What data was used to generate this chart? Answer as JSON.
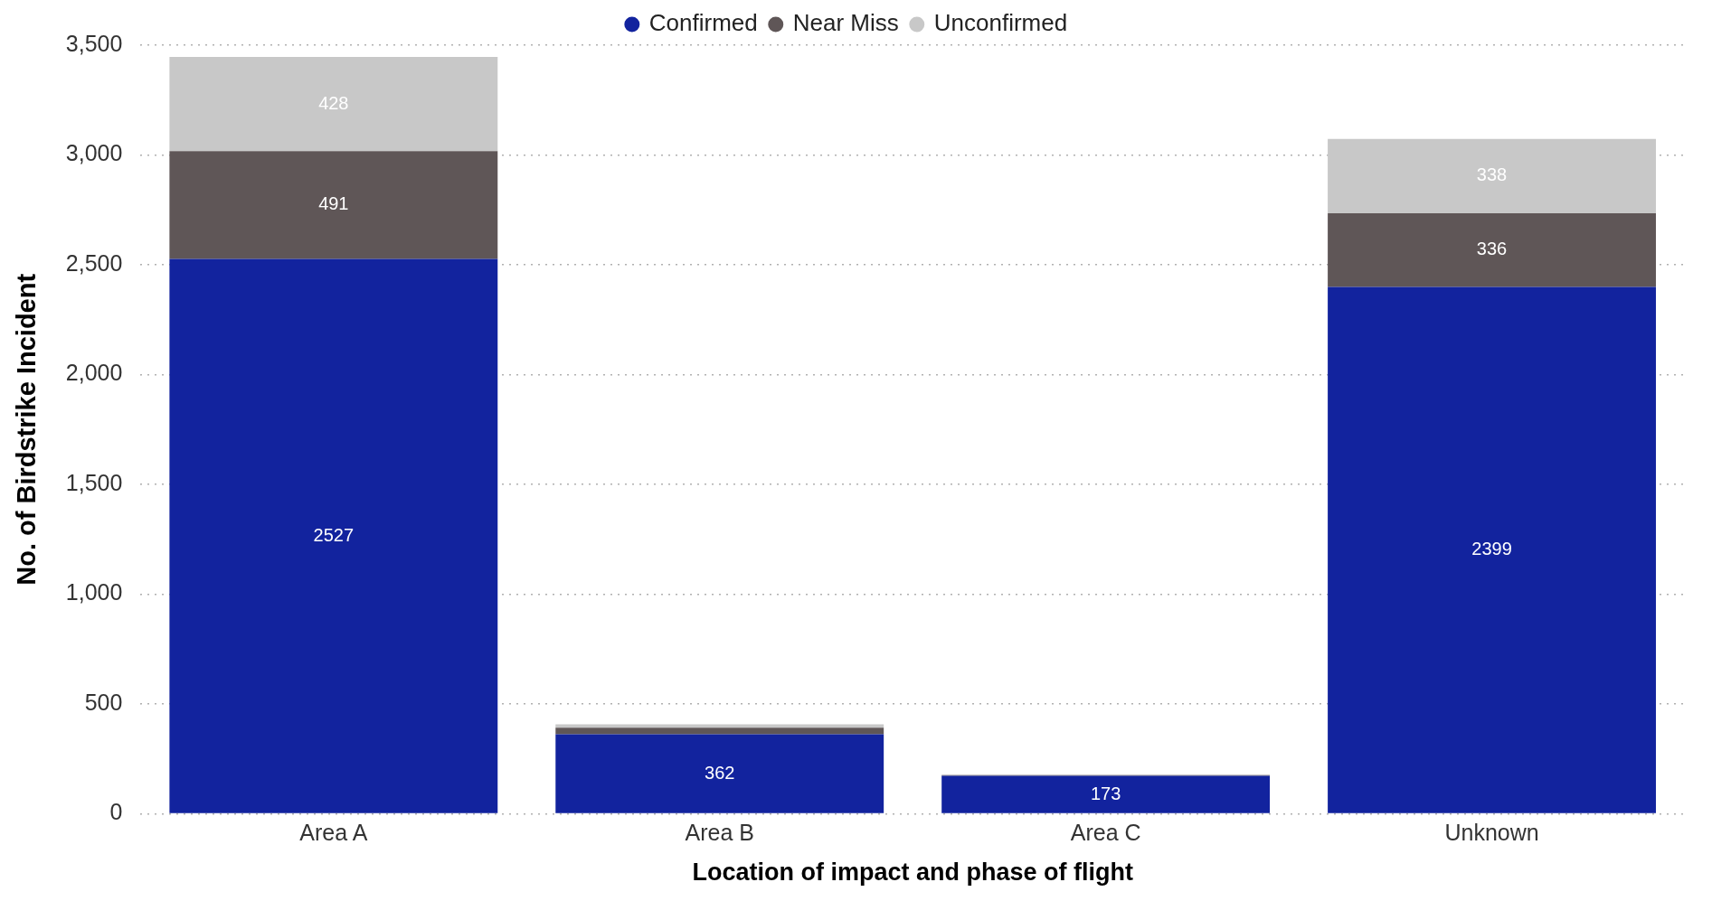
{
  "chart_data": {
    "type": "bar",
    "stacked": true,
    "xlabel": "Location of impact and phase of flight",
    "ylabel": "No. of Birdstrike Incident",
    "categories": [
      "Area A",
      "Area B",
      "Area C",
      "Unknown"
    ],
    "series": [
      {
        "name": "Confirmed",
        "color": "#12239e",
        "values": [
          2527,
          362,
          173,
          2399
        ],
        "value_labels": [
          "2527",
          "362",
          "173",
          "2399"
        ]
      },
      {
        "name": "Near Miss",
        "color": "#5f5657",
        "values": [
          491,
          30,
          3,
          336
        ],
        "value_labels": [
          "491",
          null,
          null,
          "336"
        ]
      },
      {
        "name": "Unconfirmed",
        "color": "#c8c8c8",
        "values": [
          428,
          16,
          2,
          338
        ],
        "value_labels": [
          "428",
          null,
          null,
          "338"
        ]
      }
    ],
    "ylim": [
      0,
      3500
    ],
    "yticks": [
      0,
      500,
      {
        "value": 1000,
        "label": "1,000"
      },
      {
        "value": 1500,
        "label": "1,500"
      },
      {
        "value": 2000,
        "label": "2,000"
      },
      {
        "value": 2500,
        "label": "2,500"
      },
      {
        "value": 3000,
        "label": "3,000"
      },
      {
        "value": 3500,
        "label": "3,500"
      }
    ],
    "grid": "y",
    "legend": "top"
  }
}
